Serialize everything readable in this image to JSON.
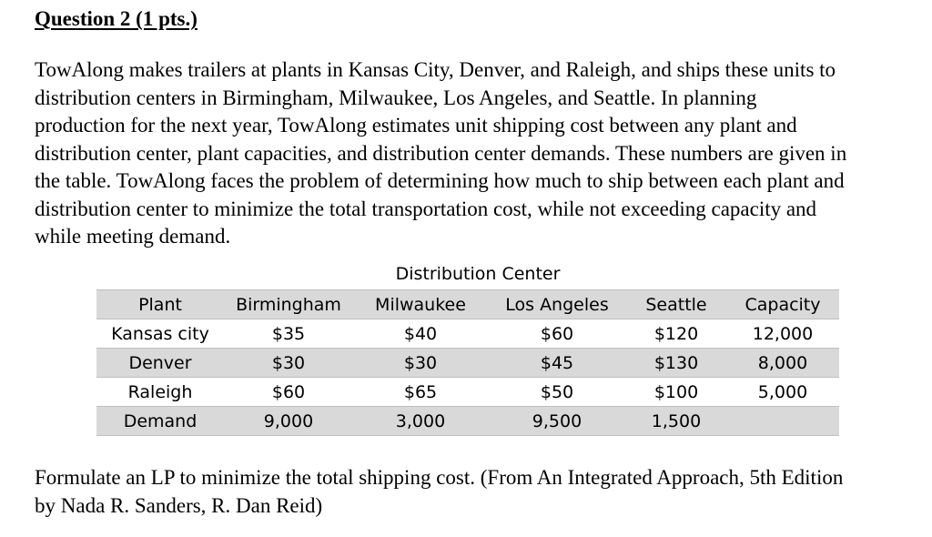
{
  "question": {
    "heading": "Question 2 (1 pts.)",
    "paragraph_lines": [
      "TowAlong makes trailers at plants in Kansas City, Denver, and Raleigh, and ships these units to",
      "distribution centers in Birmingham, Milwaukee, Los Angeles, and Seattle. In planning",
      "production for the next year, TowAlong estimates unit shipping cost between any plant and",
      "distribution center, plant capacities, and distribution center demands. These numbers are given in",
      "the table. TowAlong faces the problem of determining how much to ship between each plant and",
      "distribution center to minimize the total transportation cost, while not exceeding capacity and",
      "while meeting demand."
    ],
    "footer_lines": [
      "Formulate an LP to minimize the total shipping cost. (From An Integrated Approach, 5th Edition",
      "by Nada R. Sanders, R. Dan Reid)"
    ]
  },
  "table": {
    "caption": "Distribution Center",
    "header": [
      "Plant",
      "Birmingham",
      "Milwaukee",
      "Los Angeles",
      "Seattle",
      "Capacity"
    ],
    "rows": [
      [
        "Kansas city",
        "$35",
        "$40",
        "$60",
        "$120",
        "12,000"
      ],
      [
        "Denver",
        "$30",
        "$30",
        "$45",
        "$130",
        "8,000"
      ],
      [
        "Raleigh",
        "$60",
        "$65",
        "$50",
        "$100",
        "5,000"
      ],
      [
        "Demand",
        "9,000",
        "3,000",
        "9,500",
        "1,500",
        ""
      ]
    ]
  }
}
